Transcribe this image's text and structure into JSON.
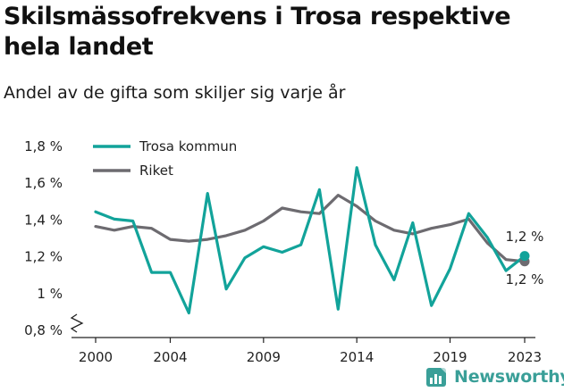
{
  "title": "Skilsmässofrekvens i Trosa respektive hela landet",
  "subtitle": "Andel av de gifta som skiljer sig varje år",
  "brand": {
    "name": "Newsworthy",
    "icon": "newsworthy-logo-icon",
    "color": "#3a9f98"
  },
  "chart_data": {
    "type": "line",
    "title": "Skilsmässofrekvens i Trosa respektive hela landet",
    "subtitle": "Andel av de gifta som skiljer sig varje år",
    "xlabel": "",
    "ylabel": "",
    "x": [
      2000,
      2001,
      2002,
      2003,
      2004,
      2005,
      2006,
      2007,
      2008,
      2009,
      2010,
      2011,
      2012,
      2013,
      2014,
      2015,
      2016,
      2017,
      2018,
      2019,
      2020,
      2021,
      2022,
      2023
    ],
    "xticks": [
      2000,
      2004,
      2009,
      2014,
      2019,
      2023
    ],
    "xlim": [
      2000,
      2023
    ],
    "ylim": [
      0.8,
      1.8
    ],
    "yticks": [
      0.8,
      1.0,
      1.2,
      1.4,
      1.6,
      1.8
    ],
    "ytick_labels": [
      "0,8 %",
      "1 %",
      "1,2 %",
      "1,4 %",
      "1,6 %",
      "1,8 %"
    ],
    "y_axis_break": true,
    "grid": false,
    "legend_position": "top-left",
    "series": [
      {
        "name": "Trosa kommun",
        "color": "#12a39a",
        "values": [
          1.44,
          1.4,
          1.39,
          1.11,
          1.11,
          0.89,
          1.54,
          1.02,
          1.19,
          1.25,
          1.22,
          1.26,
          1.56,
          0.91,
          1.68,
          1.26,
          1.07,
          1.38,
          0.93,
          1.13,
          1.43,
          1.3,
          1.12,
          1.2
        ],
        "end_label": "1,2 %"
      },
      {
        "name": "Riket",
        "color": "#6d6b70",
        "values": [
          1.36,
          1.34,
          1.36,
          1.35,
          1.29,
          1.28,
          1.29,
          1.31,
          1.34,
          1.39,
          1.46,
          1.44,
          1.43,
          1.53,
          1.47,
          1.39,
          1.34,
          1.32,
          1.35,
          1.37,
          1.4,
          1.27,
          1.18,
          1.17
        ],
        "end_label": "1,2 %"
      }
    ]
  }
}
